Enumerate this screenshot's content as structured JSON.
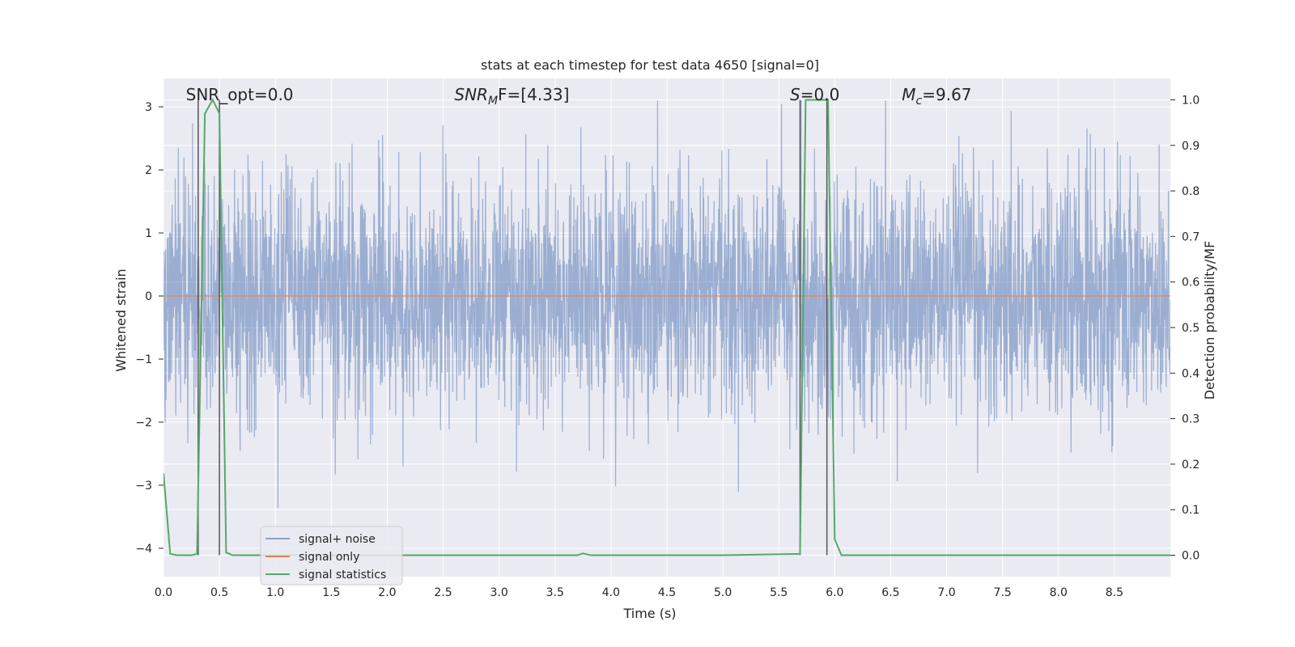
{
  "chart_data": {
    "type": "line",
    "title": "stats at each timestep for test data 4650 [signal=0]",
    "xlabel": "Time (s)",
    "ylabel": "Whitened strain",
    "y2label": "Detection probability/MF",
    "xlim": [
      0,
      9.0
    ],
    "ylim": [
      -4.45,
      3.45
    ],
    "y2lim": [
      -0.047,
      1.047
    ],
    "x_ticks": [
      0.0,
      0.5,
      1.0,
      1.5,
      2.0,
      2.5,
      3.0,
      3.5,
      4.0,
      4.5,
      5.0,
      5.5,
      6.0,
      6.5,
      7.0,
      7.5,
      8.0,
      8.5
    ],
    "x_tick_labels": [
      "0.0",
      "0.5",
      "1.0",
      "1.5",
      "2.0",
      "2.5",
      "3.0",
      "3.5",
      "4.0",
      "4.5",
      "5.0",
      "5.5",
      "6.0",
      "6.5",
      "7.0",
      "7.5",
      "8.0",
      "8.5"
    ],
    "y_ticks": [
      -4,
      -3,
      -2,
      -1,
      0,
      1,
      2,
      3
    ],
    "y_tick_labels": [
      "−4",
      "−3",
      "−2",
      "−1",
      "0",
      "1",
      "2",
      "3"
    ],
    "y2_ticks": [
      0.0,
      0.1,
      0.2,
      0.3,
      0.4,
      0.5,
      0.6,
      0.7,
      0.8,
      0.9,
      1.0
    ],
    "y2_tick_labels": [
      "0.0",
      "0.1",
      "0.2",
      "0.3",
      "0.4",
      "0.5",
      "0.6",
      "0.7",
      "0.8",
      "0.9",
      "1.0"
    ],
    "grid": true,
    "legend_position": "lower-left",
    "series": [
      {
        "name": "signal+ noise",
        "color": "#4c72b0",
        "axis": "left",
        "x_range": [
          0,
          9.0
        ],
        "typical_range": [
          -1.7,
          1.7
        ],
        "peak_max": 3.1,
        "peak_min": -3.6
      },
      {
        "name": "signal only",
        "color": "#dd8452",
        "axis": "left",
        "x": [
          0,
          9.0
        ],
        "y": [
          0,
          0
        ]
      },
      {
        "name": "signal statistics",
        "color": "#55a868",
        "axis": "right",
        "x": [
          0.0,
          0.06,
          0.12,
          0.2,
          0.25,
          0.3,
          0.37,
          0.44,
          0.5,
          0.56,
          0.62,
          0.7,
          1.0,
          2.0,
          3.0,
          3.7,
          3.75,
          3.82,
          4.0,
          5.0,
          5.69,
          5.74,
          5.8,
          5.94,
          6.0,
          6.06,
          6.5,
          7.0,
          8.0,
          9.0
        ],
        "y": [
          0.18,
          0.003,
          0.0,
          0.0,
          0.0,
          0.003,
          0.97,
          1.0,
          0.97,
          0.006,
          0.0,
          0.0,
          0.0,
          0.0,
          0.0,
          0.0,
          0.004,
          0.0,
          0.0,
          0.0,
          0.003,
          1.0,
          1.0,
          1.0,
          0.035,
          0.0,
          0.0,
          0.0,
          0.0,
          0.0
        ]
      }
    ],
    "vertical_lines": [
      0.31,
      0.5,
      5.69,
      5.93
    ],
    "annotations": [
      {
        "text": "SNR_opt=0.0",
        "x": 0.2
      },
      {
        "text_parts": [
          "SNR",
          "M",
          "F=[4.33]"
        ],
        "x": 2.6
      },
      {
        "text_parts": [
          "S",
          "",
          "=0.0"
        ],
        "x": 5.6
      },
      {
        "text_parts": [
          "M",
          "c",
          "=9.67"
        ],
        "x": 6.6
      }
    ],
    "colors": {
      "plot_bg": "#eaeaf2",
      "grid": "#ffffff",
      "vline": "#555555",
      "text": "#262626"
    }
  }
}
